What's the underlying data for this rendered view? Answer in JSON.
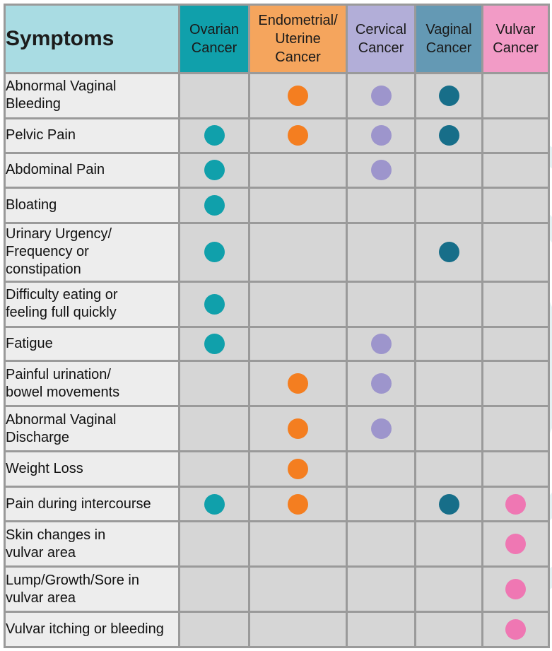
{
  "chart_data": {
    "type": "table",
    "header": "Symptoms",
    "columns": [
      {
        "label": "Ovarian\nCancer",
        "color": "#10a0ab"
      },
      {
        "label": "Endometrial/\nUterine\nCancer",
        "color": "#f5a55d"
      },
      {
        "label": "Cervical\nCancer",
        "color": "#b2aed8"
      },
      {
        "label": "Vaginal\nCancer",
        "color": "#6499b4"
      },
      {
        "label": "Vulvar\nCancer",
        "color": "#f29bc6"
      }
    ],
    "dot_colors": [
      "#10a0ab",
      "#f47e20",
      "#9d95cc",
      "#176e89",
      "#ef77b3"
    ],
    "rows": [
      {
        "symptom": "Abnormal Vaginal\nBleeding",
        "marks": [
          false,
          true,
          true,
          true,
          false
        ]
      },
      {
        "symptom": "Pelvic Pain",
        "marks": [
          true,
          true,
          true,
          true,
          false
        ]
      },
      {
        "symptom": "Abdominal Pain",
        "marks": [
          true,
          false,
          true,
          false,
          false
        ]
      },
      {
        "symptom": "Bloating",
        "marks": [
          true,
          false,
          false,
          false,
          false
        ]
      },
      {
        "symptom": "Urinary Urgency/\nFrequency or\nconstipation",
        "marks": [
          true,
          false,
          false,
          true,
          false
        ]
      },
      {
        "symptom": "Difficulty eating or\nfeeling full quickly",
        "marks": [
          true,
          false,
          false,
          false,
          false
        ]
      },
      {
        "symptom": "Fatigue",
        "marks": [
          true,
          false,
          true,
          false,
          false
        ]
      },
      {
        "symptom": "Painful urination/\nbowel movements",
        "marks": [
          false,
          true,
          true,
          false,
          false
        ]
      },
      {
        "symptom": "Abnormal Vaginal\nDischarge",
        "marks": [
          false,
          true,
          true,
          false,
          false
        ]
      },
      {
        "symptom": "Weight Loss",
        "marks": [
          false,
          true,
          false,
          false,
          false
        ]
      },
      {
        "symptom": "Pain during intercourse",
        "marks": [
          true,
          true,
          false,
          true,
          true
        ]
      },
      {
        "symptom": "Skin changes in\nvulvar area",
        "marks": [
          false,
          false,
          false,
          false,
          true
        ]
      },
      {
        "symptom": "Lump/Growth/Sore in\nvulvar area",
        "marks": [
          false,
          false,
          false,
          false,
          true
        ]
      },
      {
        "symptom": "Vulvar itching or bleeding",
        "marks": [
          false,
          false,
          false,
          false,
          true
        ]
      }
    ]
  }
}
